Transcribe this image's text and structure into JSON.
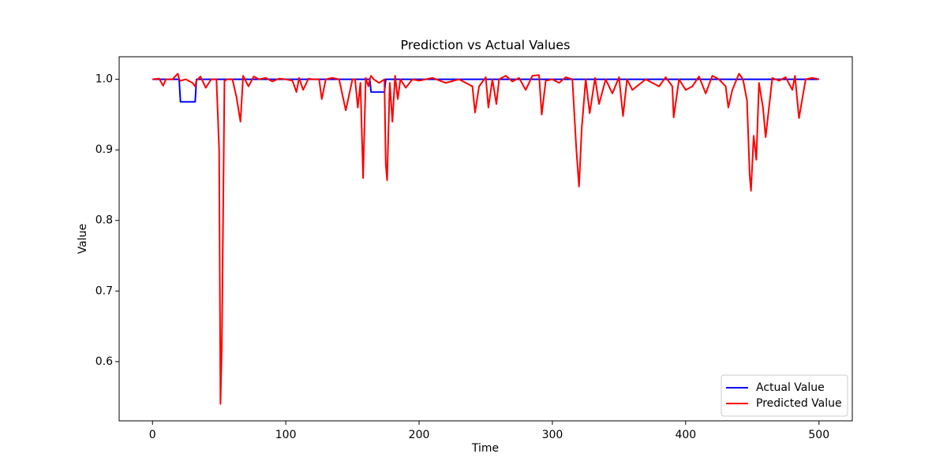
{
  "chart_data": {
    "type": "line",
    "title": "Prediction vs Actual Values",
    "x_label": "Time",
    "y_label": "Value",
    "x": [
      0,
      5,
      8,
      10,
      15,
      19,
      20,
      21,
      25,
      30,
      32,
      33,
      36,
      40,
      44,
      48,
      50,
      51,
      52,
      54,
      56,
      60,
      63,
      66,
      68,
      72,
      76,
      80,
      85,
      90,
      95,
      100,
      105,
      108,
      110,
      113,
      117,
      120,
      125,
      127,
      130,
      135,
      140,
      145,
      150,
      152,
      154,
      156,
      158,
      160,
      162,
      163,
      164,
      166,
      170,
      174,
      175,
      176,
      178,
      180,
      182,
      184,
      186,
      190,
      195,
      200,
      210,
      220,
      230,
      240,
      242,
      245,
      250,
      252,
      255,
      258,
      260,
      265,
      270,
      275,
      280,
      285,
      290,
      292,
      295,
      300,
      305,
      310,
      315,
      318,
      320,
      322,
      325,
      328,
      332,
      335,
      340,
      345,
      350,
      353,
      356,
      360,
      370,
      380,
      385,
      390,
      391,
      395,
      400,
      405,
      410,
      415,
      420,
      425,
      430,
      432,
      435,
      440,
      443,
      446,
      448,
      449,
      451,
      453,
      455,
      458,
      460,
      465,
      470,
      475,
      480,
      482,
      485,
      490,
      495,
      500
    ],
    "series": [
      {
        "name": "Actual Value",
        "color": "#0000ff",
        "values": [
          1.0,
          1.0,
          1.0,
          1.0,
          1.0,
          1.0,
          1.0,
          0.968,
          0.968,
          0.968,
          0.968,
          1.0,
          1.0,
          1.0,
          1.0,
          1.0,
          1.0,
          1.0,
          1.0,
          1.0,
          1.0,
          1.0,
          1.0,
          1.0,
          1.0,
          1.0,
          1.0,
          1.0,
          1.0,
          1.0,
          1.0,
          1.0,
          1.0,
          1.0,
          1.0,
          1.0,
          1.0,
          1.0,
          1.0,
          1.0,
          1.0,
          1.0,
          1.0,
          1.0,
          1.0,
          1.0,
          1.0,
          1.0,
          1.0,
          1.0,
          1.0,
          1.0,
          0.982,
          0.982,
          0.982,
          0.982,
          1.0,
          1.0,
          1.0,
          1.0,
          1.0,
          1.0,
          1.0,
          1.0,
          1.0,
          1.0,
          1.0,
          1.0,
          1.0,
          1.0,
          1.0,
          1.0,
          1.0,
          1.0,
          1.0,
          1.0,
          1.0,
          1.0,
          1.0,
          1.0,
          1.0,
          1.0,
          1.0,
          1.0,
          1.0,
          1.0,
          1.0,
          1.0,
          1.0,
          1.0,
          1.0,
          1.0,
          1.0,
          1.0,
          1.0,
          1.0,
          1.0,
          1.0,
          1.0,
          1.0,
          1.0,
          1.0,
          1.0,
          1.0,
          1.0,
          1.0,
          1.0,
          1.0,
          1.0,
          1.0,
          1.0,
          1.0,
          1.0,
          1.0,
          1.0,
          1.0,
          1.0,
          1.0,
          1.0,
          1.0,
          1.0,
          1.0,
          1.0,
          1.0,
          1.0,
          1.0,
          1.0,
          1.0,
          1.0,
          1.0,
          1.0,
          1.0,
          1.0,
          1.0,
          1.0,
          1.0
        ]
      },
      {
        "name": "Predicted Value",
        "color": "#ff0000",
        "values": [
          1.0,
          1.001,
          0.991,
          1.0,
          1.0,
          1.008,
          1.0,
          0.998,
          1.0,
          0.995,
          0.99,
          0.998,
          1.004,
          0.988,
          1.0,
          1.0,
          0.9,
          0.54,
          0.62,
          0.998,
          1.0,
          1.0,
          0.975,
          0.94,
          1.005,
          0.99,
          1.004,
          1.0,
          1.002,
          0.997,
          1.001,
          1.0,
          0.998,
          0.982,
          1.002,
          0.985,
          1.001,
          1.0,
          1.0,
          0.972,
          1.0,
          1.002,
          1.0,
          0.956,
          1.0,
          1.0,
          0.96,
          0.995,
          0.86,
          1.002,
          0.99,
          1.0,
          1.005,
          1.0,
          0.995,
          1.0,
          0.88,
          0.857,
          0.995,
          0.94,
          1.005,
          0.972,
          1.0,
          0.988,
          1.0,
          0.998,
          1.002,
          0.995,
          1.0,
          0.99,
          0.953,
          0.99,
          1.003,
          0.96,
          1.0,
          0.965,
          1.0,
          1.005,
          0.997,
          1.002,
          0.985,
          1.005,
          1.006,
          0.95,
          0.998,
          1.0,
          0.995,
          1.003,
          1.0,
          0.9,
          0.848,
          0.93,
          1.0,
          0.952,
          1.002,
          0.965,
          1.0,
          0.98,
          1.003,
          0.948,
          1.0,
          0.985,
          1.0,
          0.99,
          1.003,
          0.99,
          0.946,
          1.0,
          0.985,
          0.99,
          1.004,
          0.98,
          1.005,
          1.0,
          0.99,
          0.96,
          0.985,
          1.008,
          1.0,
          0.97,
          0.865,
          0.842,
          0.92,
          0.886,
          0.995,
          0.96,
          0.918,
          1.002,
          0.998,
          1.003,
          0.985,
          1.005,
          0.945,
          1.0,
          1.002,
          1.0
        ]
      }
    ],
    "xlim": [
      -25,
      525
    ],
    "ylim": [
      0.516,
      1.032
    ],
    "xticks": [
      0,
      100,
      200,
      300,
      400,
      500
    ],
    "yticks": [
      0.6,
      0.7,
      0.8,
      0.9,
      {
        "value": 1,
        "label": "1.0"
      }
    ],
    "grid": false,
    "legend": "lower right"
  }
}
